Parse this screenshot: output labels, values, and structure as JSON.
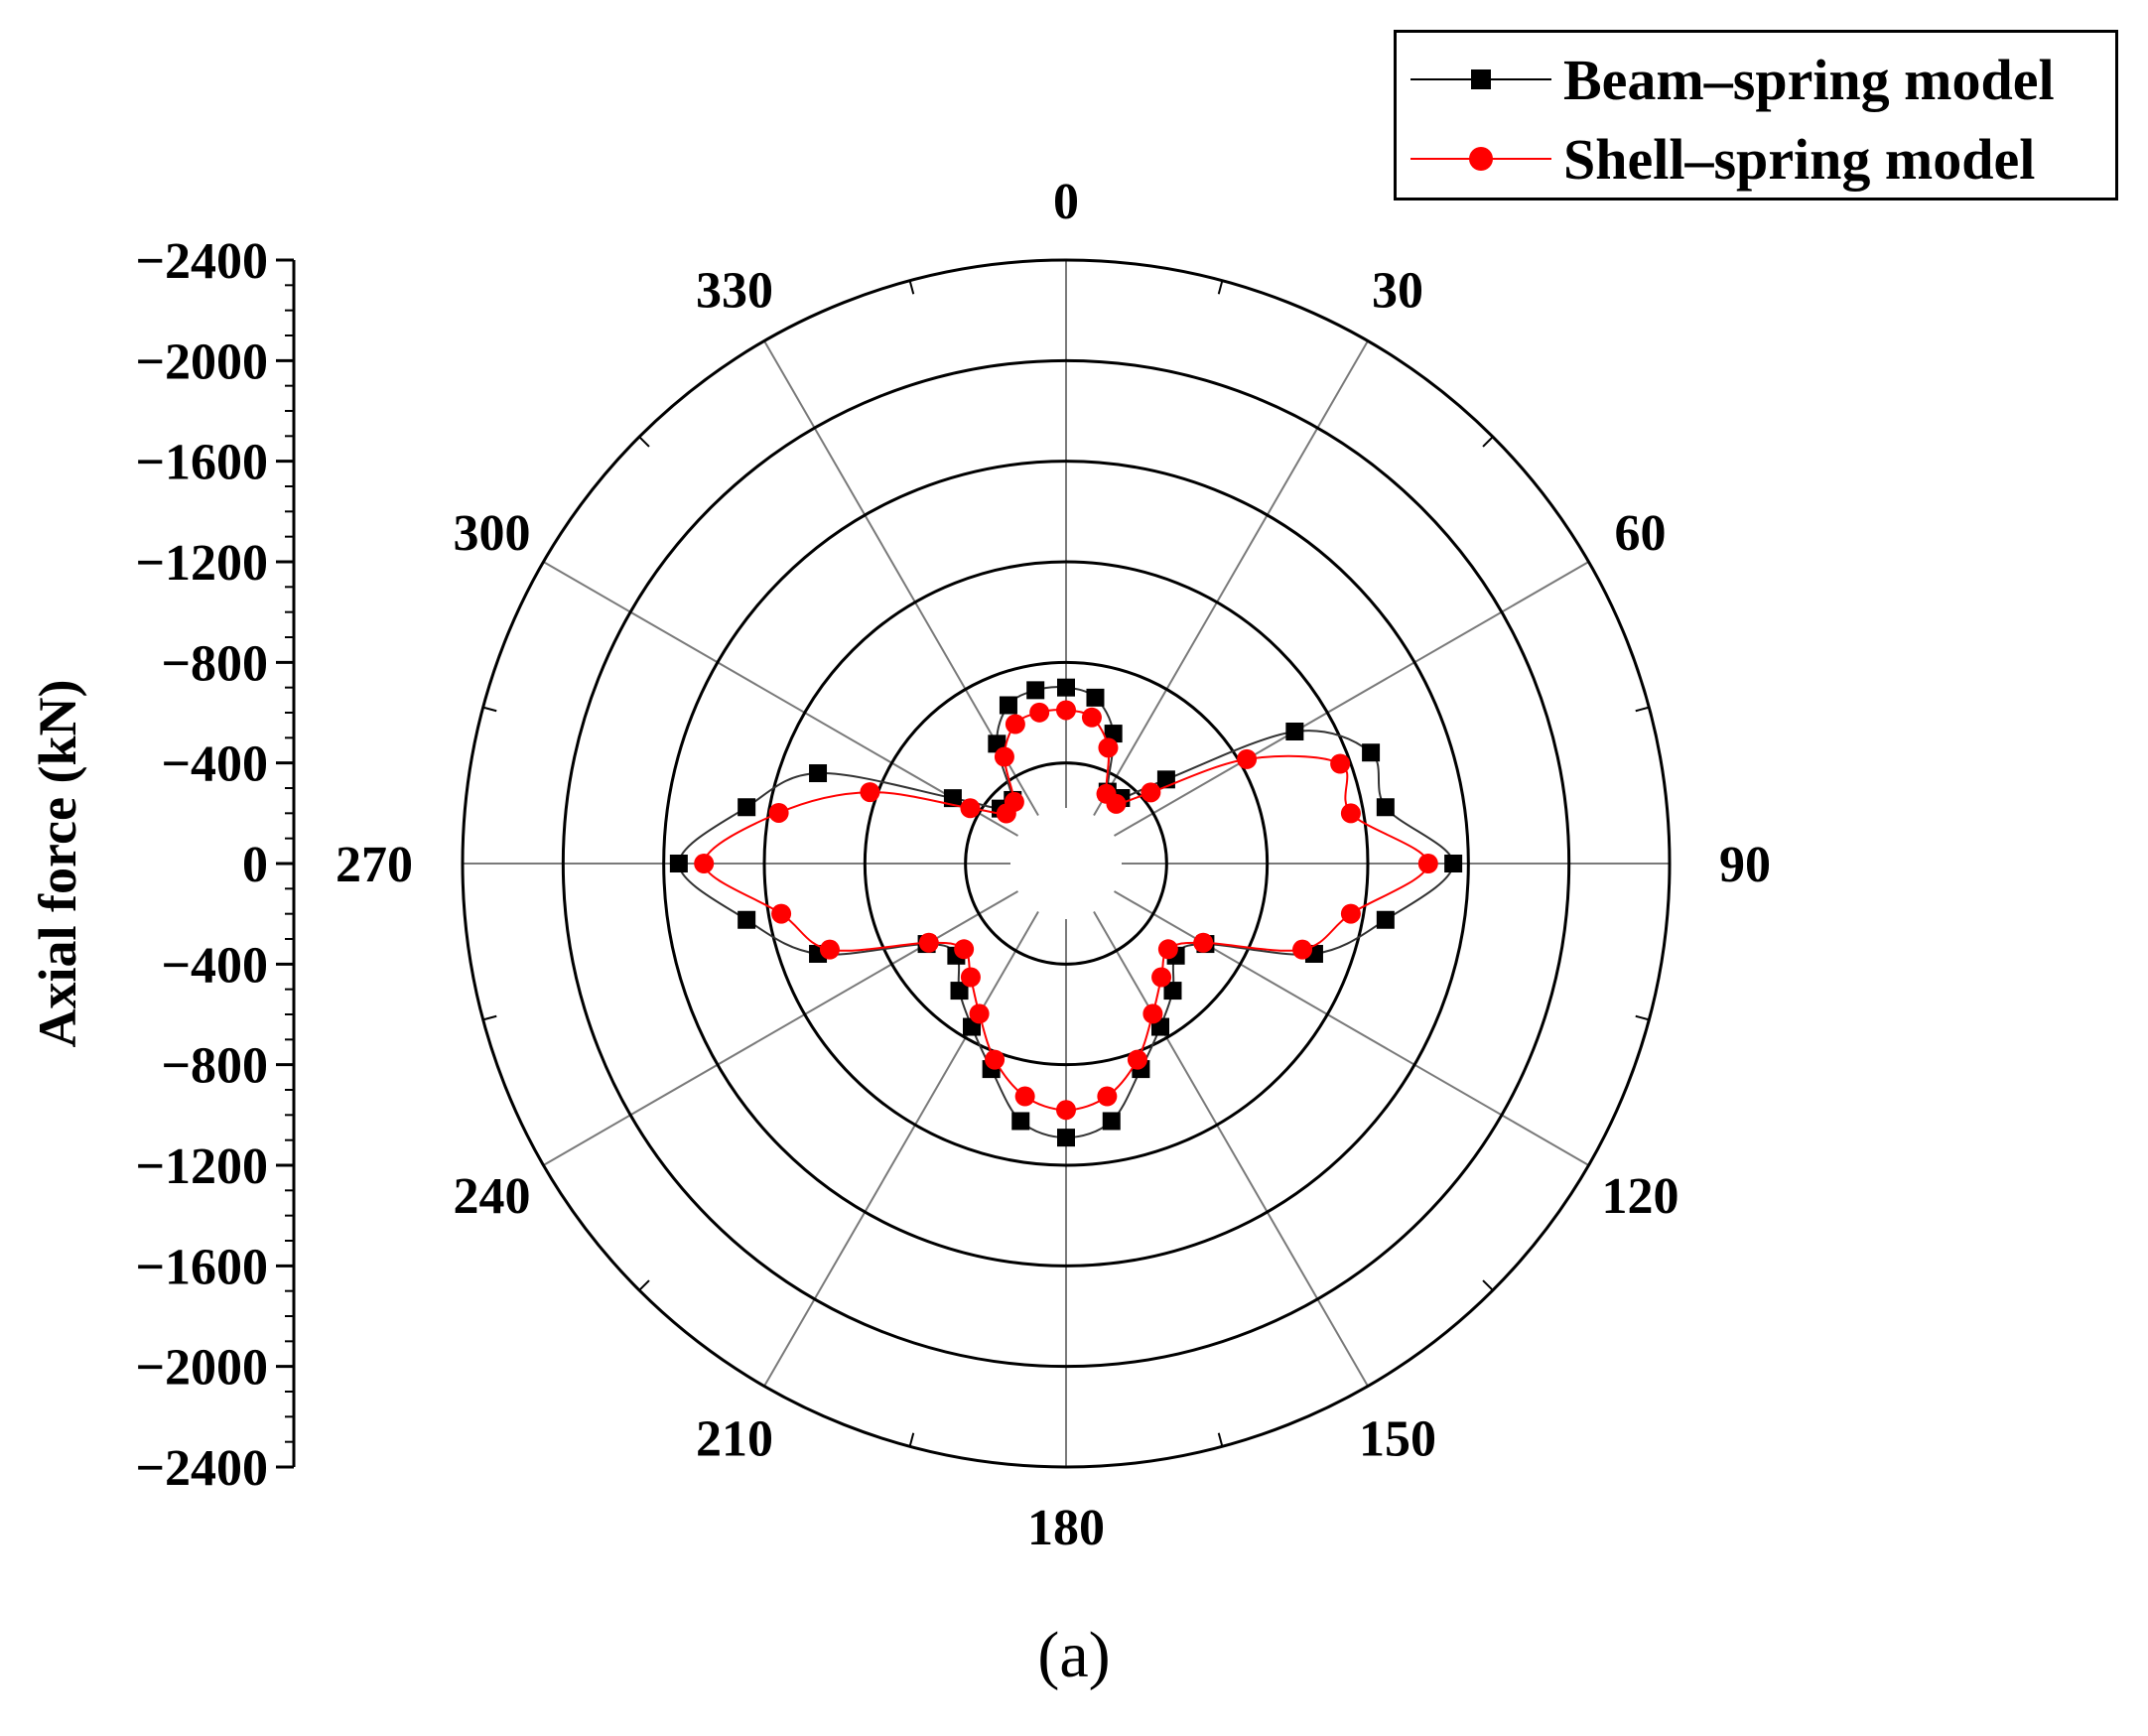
{
  "caption": "(a)",
  "chart_data": {
    "type": "polar-line",
    "angular_ticks": [
      0,
      30,
      60,
      90,
      120,
      150,
      180,
      210,
      240,
      270,
      300,
      330
    ],
    "radial_axis": {
      "label": "Axial force (kN)",
      "ticks": [
        -2400,
        -2000,
        -1600,
        -1200,
        -800,
        -400,
        0,
        -400,
        -800,
        -1200,
        -1600,
        -2000,
        -2400
      ],
      "range": [
        0,
        -2400
      ]
    },
    "angles": [
      0,
      10,
      20,
      30,
      40,
      50,
      60,
      70,
      80,
      90,
      100,
      110,
      120,
      130,
      140,
      150,
      160,
      170,
      180,
      190,
      200,
      210,
      220,
      230,
      240,
      250,
      260,
      270,
      280,
      290,
      300,
      310,
      320,
      330,
      340,
      350
    ],
    "series": [
      {
        "name": "Beam–spring model",
        "color": "#000000",
        "marker": "square",
        "values": [
          -700,
          -670,
          -550,
          -330,
          -340,
          -520,
          -1050,
          -1290,
          -1290,
          -1540,
          -1290,
          -1050,
          -640,
          -570,
          -660,
          -750,
          -870,
          -1040,
          -1090,
          -1040,
          -870,
          -750,
          -660,
          -570,
          -640,
          -1050,
          -1290,
          -1540,
          -1290,
          -1050,
          -520,
          -340,
          -330,
          -550,
          -670,
          -700
        ]
      },
      {
        "name": "Shell–spring model",
        "color": "#ff0000",
        "marker": "circle",
        "values": [
          -610,
          -590,
          -490,
          -320,
          -310,
          -440,
          -830,
          -1160,
          -1150,
          -1440,
          -1150,
          -1000,
          -630,
          -530,
          -590,
          -690,
          -830,
          -940,
          -980,
          -940,
          -830,
          -690,
          -590,
          -530,
          -630,
          -1000,
          -1150,
          -1440,
          -1160,
          -830,
          -440,
          -310,
          -320,
          -490,
          -590,
          -610
        ]
      }
    ]
  }
}
